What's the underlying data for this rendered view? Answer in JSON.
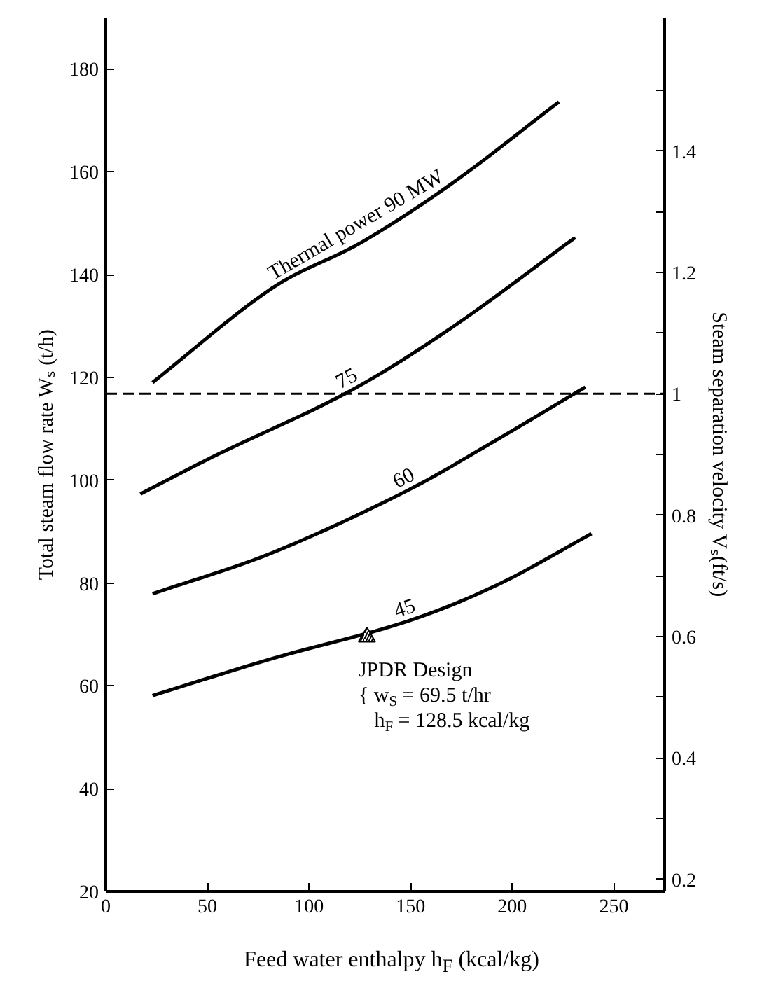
{
  "chart_data": {
    "type": "line",
    "xlabel": "Feed water enthalpy h$_{F}$ (kcal/kg)",
    "ylabel": "Total steam flow rate Wₛ (t/h)",
    "y2label": "Steam separation velocity Vₛ(ft/s)",
    "xlim": [
      0,
      275
    ],
    "xticks": [
      0,
      50,
      100,
      150,
      200,
      250
    ],
    "ylim": [
      20,
      190
    ],
    "yticks": [
      20,
      40,
      60,
      80,
      100,
      120,
      140,
      160,
      180
    ],
    "y2lim": [
      0.18,
      1.62
    ],
    "y2ticks": [
      0.2,
      {
        "value": 0.3,
        "label": null
      },
      0.4,
      {
        "value": 0.5,
        "label": null
      },
      0.6,
      {
        "value": 0.7,
        "label": null
      },
      0.8,
      {
        "value": 0.9,
        "label": null
      },
      1.0,
      {
        "value": 1.1,
        "label": null
      },
      1.2,
      {
        "value": 1.3,
        "label": null
      },
      1.4,
      {
        "value": 1.5,
        "label": null
      }
    ],
    "grid": false,
    "legend": false,
    "line_style": "solid",
    "marker": "none",
    "series": [
      {
        "name": "Thermal power 90 MW",
        "color": "#000000",
        "x": [
          23,
          82,
          126,
          171,
          223
        ],
        "values": [
          119,
          137.4,
          146.3,
          157.9,
          173.6
        ]
      },
      {
        "name": "75",
        "color": "#000000",
        "x": [
          17,
          55,
          120,
          171,
          231
        ],
        "values": [
          97.3,
          105,
          117.3,
          129.9,
          147.2
        ]
      },
      {
        "name": "60",
        "color": "#000000",
        "x": [
          23,
          82,
          148,
          193,
          236
        ],
        "values": [
          77.9,
          85.9,
          97.9,
          108,
          118.1
        ]
      },
      {
        "name": "45",
        "color": "#000000",
        "x": [
          23,
          82,
          148,
          193,
          239
        ],
        "values": [
          58.1,
          65.3,
          72.5,
          79.7,
          89.6
        ]
      },
      {
        "type": "scatter",
        "marker": "triangle",
        "color": "#000000",
        "x": [
          128.5
        ],
        "values": [
          69.5
        ]
      }
    ],
    "ref_lines": [
      {
        "axis": "y2",
        "value": 1.0,
        "line_style": "dashed",
        "color": "#000000"
      }
    ],
    "annotations": [
      {
        "text": "JPDR Design\n{ w$_{S}$ = 69.5 t/hr\n   h$_{F}$ = 128.5 kcal/kg",
        "x": 128.5,
        "y": 69.5
      }
    ]
  }
}
